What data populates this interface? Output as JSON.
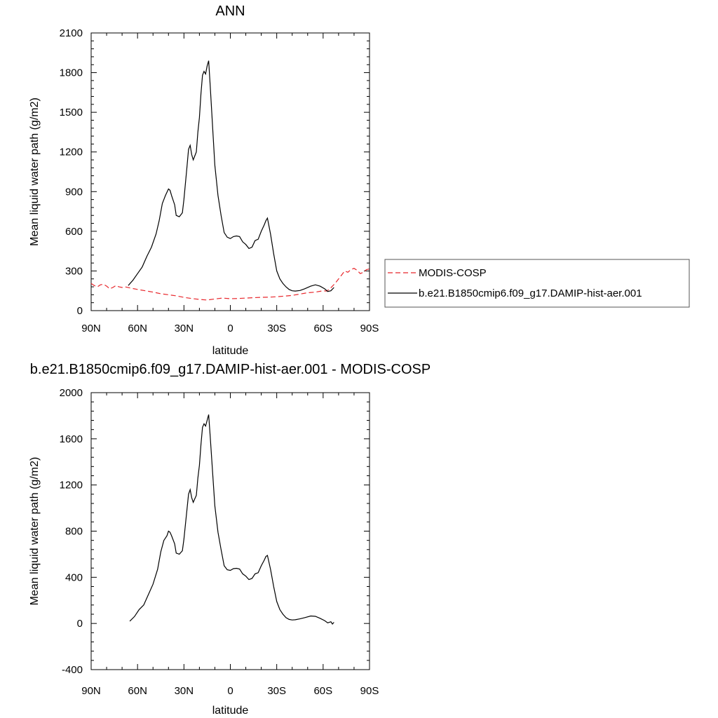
{
  "chart_data": [
    {
      "type": "line",
      "title": "ANN",
      "xlabel": "latitude",
      "ylabel": "Mean liquid water path (g/m2)",
      "xlim": [
        90,
        -90
      ],
      "ylim": [
        0,
        2100
      ],
      "xticks": [
        90,
        60,
        30,
        0,
        -30,
        -60,
        -90
      ],
      "xtick_labels": [
        "90N",
        "60N",
        "30N",
        "0",
        "30S",
        "60S",
        "90S"
      ],
      "yticks": [
        0,
        300,
        600,
        900,
        1200,
        1500,
        1800,
        2100
      ],
      "ytick_labels": [
        "0",
        "300",
        "600",
        "900",
        "1200",
        "1500",
        "1800",
        "2100"
      ],
      "legend_placement": "right",
      "series": [
        {
          "name": "MODIS-COSP",
          "color": "#e8262b",
          "dash": "dashed",
          "x": [
            90,
            88,
            86,
            84,
            82,
            80,
            78,
            76,
            74,
            72,
            70,
            68,
            65,
            60,
            55,
            50,
            45,
            40,
            35,
            30,
            25,
            20,
            15,
            10,
            5,
            0,
            -5,
            -10,
            -15,
            -20,
            -25,
            -30,
            -35,
            -40,
            -45,
            -50,
            -55,
            -60,
            -62,
            -64,
            -66,
            -68,
            -70,
            -72,
            -74,
            -76,
            -78,
            -80,
            -82,
            -84,
            -86,
            -88,
            -90
          ],
          "y": [
            205,
            190,
            180,
            195,
            200,
            185,
            165,
            175,
            190,
            180,
            175,
            180,
            172,
            160,
            150,
            140,
            128,
            120,
            112,
            100,
            92,
            85,
            80,
            88,
            95,
            90,
            92,
            95,
            98,
            100,
            102,
            105,
            110,
            115,
            125,
            135,
            140,
            150,
            148,
            160,
            185,
            210,
            240,
            270,
            300,
            290,
            310,
            320,
            305,
            280,
            290,
            310,
            315
          ]
        },
        {
          "name": "b.e21.B1850cmip6.f09_g17.DAMIP-hist-aer.001",
          "color": "#000000",
          "dash": "solid",
          "x": [
            66,
            63,
            60,
            57,
            54,
            51,
            48,
            46,
            44,
            42,
            40,
            39,
            38,
            36,
            35,
            33,
            31,
            30,
            28,
            27,
            26,
            25,
            24,
            23,
            22,
            21,
            20,
            19,
            18,
            17,
            16,
            15,
            14,
            13,
            12,
            11,
            10,
            8,
            6,
            4,
            2,
            0,
            -2,
            -4,
            -6,
            -8,
            -10,
            -12,
            -14,
            -16,
            -18,
            -20,
            -22,
            -23,
            -24,
            -26,
            -28,
            -30,
            -32,
            -34,
            -36,
            -38,
            -40,
            -42,
            -45,
            -48,
            -52,
            -55,
            -58,
            -61,
            -63,
            -65,
            -67
          ],
          "y": [
            190,
            230,
            280,
            330,
            410,
            480,
            580,
            680,
            810,
            870,
            920,
            910,
            870,
            800,
            720,
            710,
            740,
            840,
            1090,
            1220,
            1250,
            1180,
            1140,
            1170,
            1200,
            1350,
            1460,
            1640,
            1780,
            1810,
            1790,
            1850,
            1890,
            1700,
            1500,
            1300,
            1100,
            870,
            720,
            590,
            555,
            545,
            560,
            565,
            560,
            520,
            500,
            470,
            480,
            530,
            540,
            600,
            650,
            680,
            700,
            580,
            430,
            300,
            240,
            205,
            180,
            160,
            150,
            148,
            152,
            165,
            185,
            195,
            185,
            165,
            145,
            150,
            175
          ]
        }
      ]
    },
    {
      "type": "line",
      "title": "b.e21.B1850cmip6.f09_g17.DAMIP-hist-aer.001 - MODIS-COSP",
      "xlabel": "latitude",
      "ylabel": "Mean liquid water path (g/m2)",
      "xlim": [
        90,
        -90
      ],
      "ylim": [
        -400,
        2000
      ],
      "xticks": [
        90,
        60,
        30,
        0,
        -30,
        -60,
        -90
      ],
      "xtick_labels": [
        "90N",
        "60N",
        "30N",
        "0",
        "30S",
        "60S",
        "90S"
      ],
      "yticks": [
        -400,
        0,
        400,
        800,
        1200,
        1600,
        2000
      ],
      "ytick_labels": [
        "-400",
        "0",
        "400",
        "800",
        "1200",
        "1600",
        "2000"
      ],
      "series": [
        {
          "color": "#000000",
          "dash": "solid",
          "x": [
            65,
            62,
            59,
            56,
            53,
            50,
            47,
            45,
            43,
            41,
            40,
            39,
            38,
            36,
            35,
            33,
            31,
            30,
            28,
            27,
            26,
            25,
            24,
            23,
            22,
            21,
            20,
            19,
            18,
            17,
            16,
            15,
            14,
            13,
            12,
            11,
            10,
            8,
            6,
            4,
            2,
            0,
            -2,
            -4,
            -6,
            -8,
            -10,
            -12,
            -14,
            -16,
            -18,
            -20,
            -22,
            -23,
            -24,
            -26,
            -28,
            -30,
            -32,
            -34,
            -36,
            -38,
            -40,
            -42,
            -45,
            -48,
            -52,
            -55,
            -58,
            -61,
            -63,
            -65,
            -66,
            -67
          ],
          "y": [
            20,
            60,
            120,
            160,
            250,
            340,
            470,
            620,
            720,
            760,
            800,
            790,
            760,
            690,
            610,
            600,
            630,
            730,
            990,
            1120,
            1160,
            1090,
            1050,
            1080,
            1110,
            1260,
            1370,
            1550,
            1700,
            1730,
            1710,
            1760,
            1810,
            1620,
            1420,
            1220,
            1020,
            790,
            640,
            500,
            465,
            460,
            475,
            478,
            472,
            430,
            410,
            380,
            390,
            430,
            440,
            500,
            550,
            580,
            590,
            470,
            320,
            190,
            120,
            80,
            50,
            35,
            30,
            32,
            40,
            50,
            65,
            62,
            45,
            25,
            5,
            15,
            -5,
            10
          ]
        }
      ]
    }
  ],
  "legend": {
    "items": [
      {
        "label": "MODIS-COSP",
        "color": "#e8262b",
        "dash": "dashed"
      },
      {
        "label": "b.e21.B1850cmip6.f09_g17.DAMIP-hist-aer.001",
        "color": "#000000",
        "dash": "solid"
      }
    ]
  }
}
